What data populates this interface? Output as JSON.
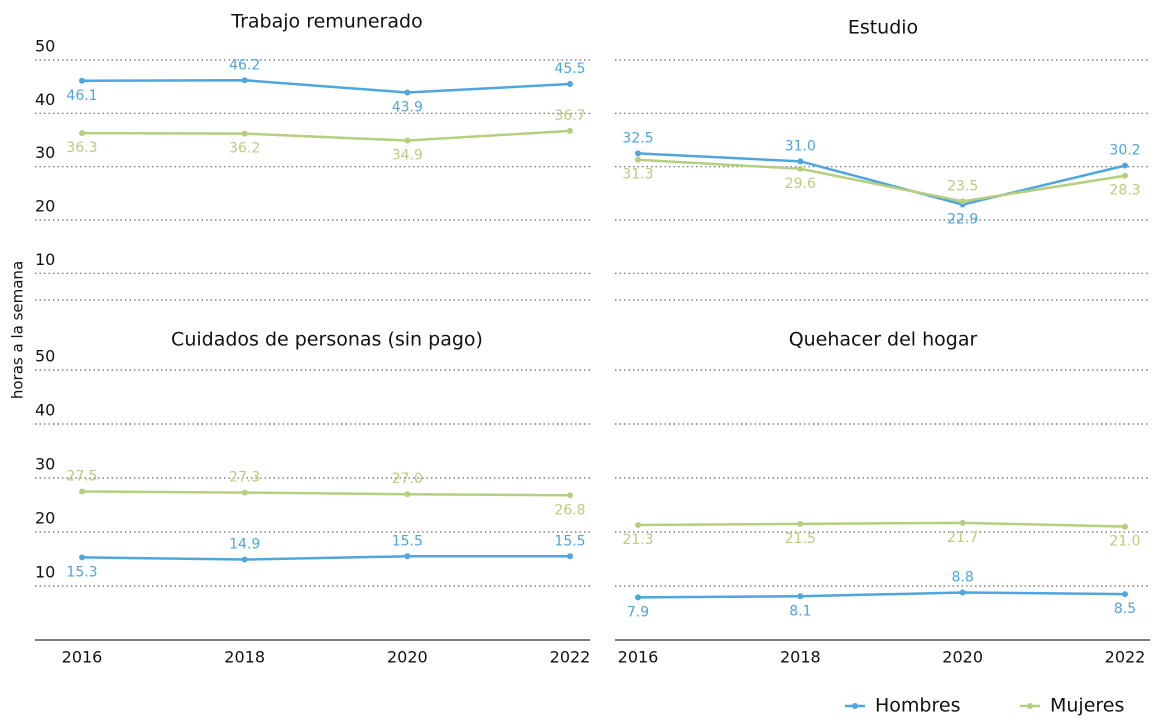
{
  "chart_data": [
    {
      "type": "line",
      "title": "Trabajo remunerado",
      "ylabel": "horas a la semana",
      "ylim": [
        5,
        50
      ],
      "yticks": [
        10,
        20,
        30,
        40,
        50
      ],
      "grid": true,
      "series": [
        {
          "name": "Hombres",
          "color": "#4ea6dc",
          "values": [
            46.1,
            46.2,
            43.9,
            45.5
          ],
          "value_labels": [
            "46.1",
            "46.2",
            "43.9",
            "45.5"
          ]
        },
        {
          "name": "Mujeres",
          "color": "#b5cf7e",
          "values": [
            36.3,
            36.2,
            34.9,
            36.7
          ],
          "value_labels": [
            "36.3",
            "36.2",
            "34.9",
            "36.7"
          ]
        }
      ]
    },
    {
      "type": "line",
      "title": "Estudio",
      "ylim": [
        5,
        50
      ],
      "yticks": [
        10,
        20,
        30,
        40,
        50
      ],
      "grid": true,
      "series": [
        {
          "name": "Hombres",
          "color": "#4ea6dc",
          "values": [
            32.5,
            31.0,
            22.9,
            30.2
          ],
          "value_labels": [
            "32.5",
            "31.0",
            "22.9",
            "30.2"
          ]
        },
        {
          "name": "Mujeres",
          "color": "#b5cf7e",
          "values": [
            31.3,
            29.6,
            23.5,
            28.3
          ],
          "value_labels": [
            "31.3",
            "29.6",
            "23.5",
            "28.3"
          ]
        }
      ]
    },
    {
      "type": "line",
      "title": "Cuidados de personas (sin pago)",
      "categories": [
        "2016",
        "2018",
        "2020",
        "2022"
      ],
      "ylim": [
        0,
        50
      ],
      "yticks": [
        10,
        20,
        30,
        40,
        50
      ],
      "grid": true,
      "series": [
        {
          "name": "Hombres",
          "color": "#4ea6dc",
          "values": [
            15.3,
            14.9,
            15.5,
            15.5
          ],
          "value_labels": [
            "15.3",
            "14.9",
            "15.5",
            "15.5"
          ]
        },
        {
          "name": "Mujeres",
          "color": "#b5cf7e",
          "values": [
            27.5,
            27.3,
            27.0,
            26.8
          ],
          "value_labels": [
            "27.5",
            "27.3",
            "27.0",
            "26.8"
          ]
        }
      ]
    },
    {
      "type": "line",
      "title": "Quehacer del hogar",
      "categories": [
        "2016",
        "2018",
        "2020",
        "2022"
      ],
      "ylim": [
        0,
        50
      ],
      "yticks": [
        10,
        20,
        30,
        40,
        50
      ],
      "grid": true,
      "series": [
        {
          "name": "Hombres",
          "color": "#4ea6dc",
          "values": [
            7.9,
            8.1,
            8.8,
            8.5
          ],
          "value_labels": [
            "7.9",
            "8.1",
            "8.8",
            "8.5"
          ]
        },
        {
          "name": "Mujeres",
          "color": "#b5cf7e",
          "values": [
            21.3,
            21.5,
            21.7,
            21.0
          ],
          "value_labels": [
            "21.3",
            "21.5",
            "21.7",
            "21.0"
          ]
        }
      ]
    }
  ]
}
